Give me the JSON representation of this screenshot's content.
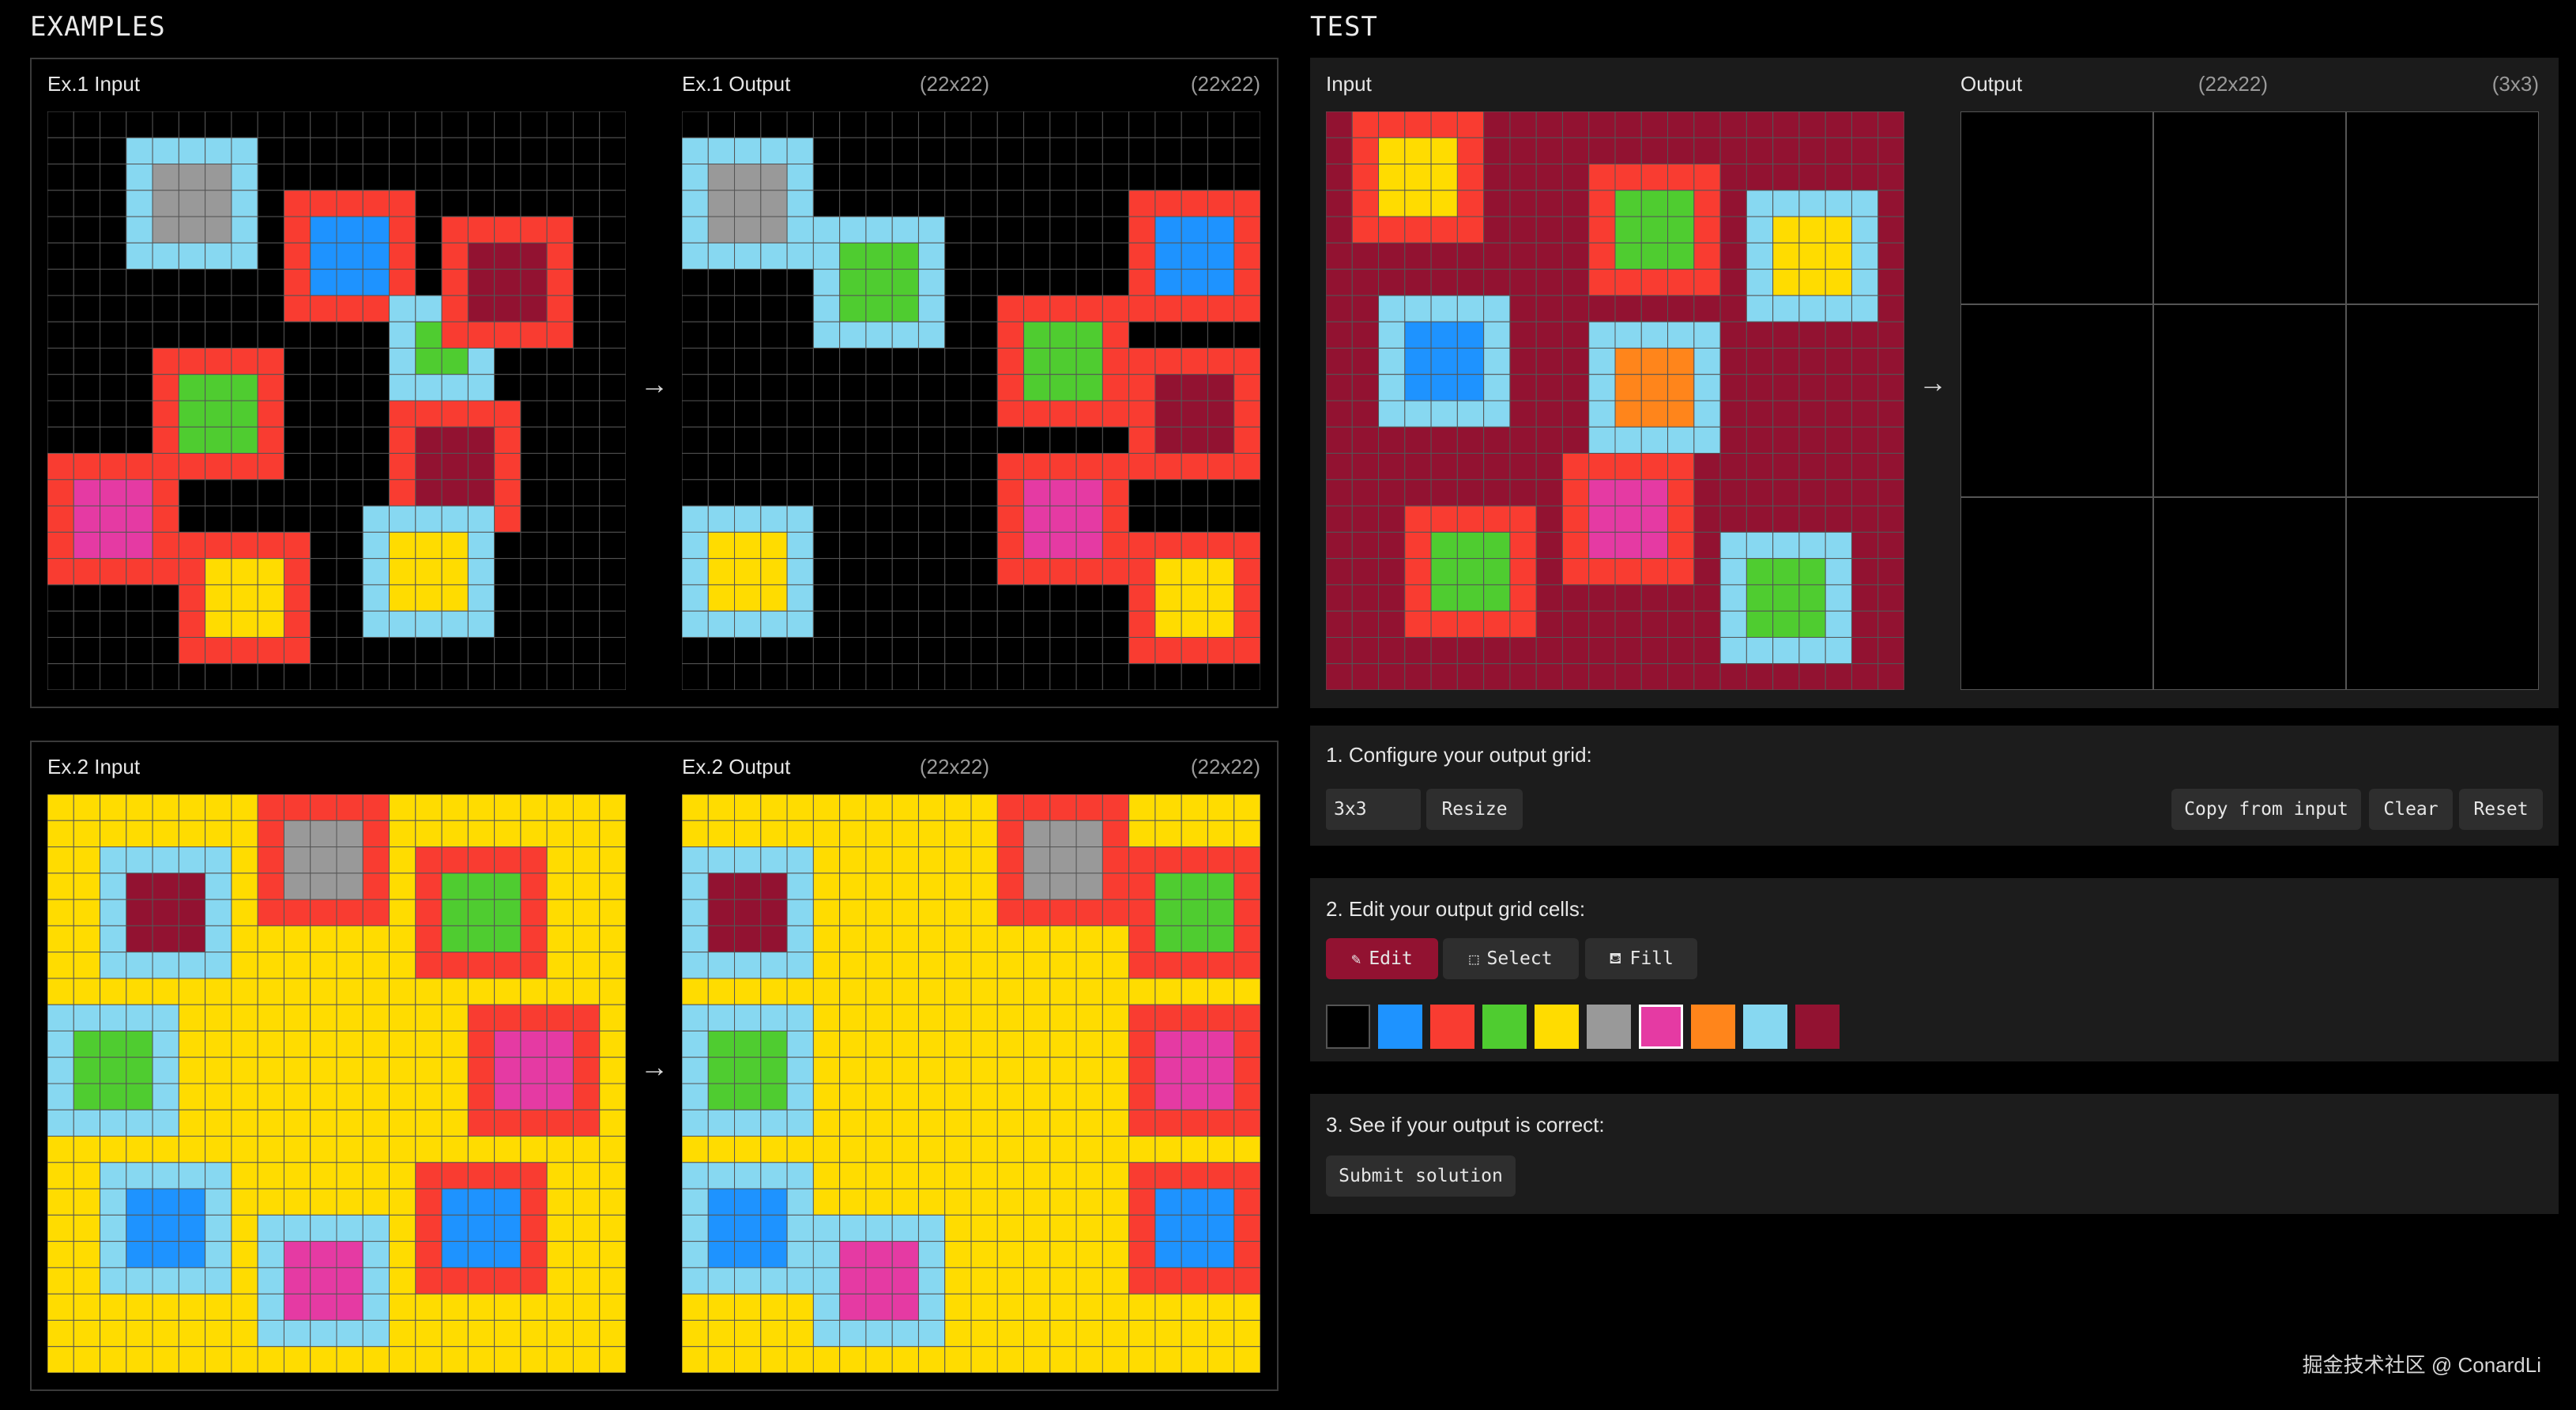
{
  "examples_title": "EXAMPLES",
  "test_title": "TEST",
  "palette": [
    "#000000",
    "#1E93FF",
    "#F93C31",
    "#4FCC30",
    "#FFDC00",
    "#999999",
    "#E53AA3",
    "#FF851B",
    "#87D8F1",
    "#921231"
  ],
  "grid_line_color": "#555555",
  "arrow": "→",
  "examples": [
    {
      "input": {
        "label": "Ex.1 Input",
        "size": "(22x22)",
        "bg": 0,
        "rects": [
          [
            1,
            3,
            5,
            5,
            8,
            5
          ],
          [
            3,
            9,
            5,
            5,
            2,
            1
          ],
          [
            7,
            13,
            4,
            4,
            8,
            3
          ],
          [
            4,
            15,
            5,
            5,
            2,
            9
          ],
          [
            9,
            4,
            5,
            5,
            2,
            3
          ],
          [
            11,
            13,
            5,
            5,
            2,
            9
          ],
          [
            13,
            0,
            5,
            5,
            2,
            6
          ],
          [
            15,
            12,
            5,
            5,
            8,
            4
          ],
          [
            16,
            5,
            5,
            5,
            2,
            4
          ]
        ]
      },
      "output": {
        "label": "Ex.1 Output",
        "size": "(22x22)",
        "bg": 0,
        "rects": [
          [
            1,
            0,
            5,
            5,
            8,
            5
          ],
          [
            3,
            17,
            5,
            5,
            2,
            1
          ],
          [
            4,
            5,
            5,
            5,
            8,
            3
          ],
          [
            7,
            12,
            5,
            5,
            2,
            3
          ],
          [
            9,
            17,
            5,
            5,
            2,
            9
          ],
          [
            13,
            12,
            5,
            5,
            2,
            6
          ],
          [
            15,
            0,
            5,
            5,
            8,
            4
          ],
          [
            16,
            17,
            5,
            5,
            2,
            4
          ]
        ]
      }
    },
    {
      "input": {
        "label": "Ex.2 Input",
        "size": "(22x22)",
        "bg": 4,
        "rects": [
          [
            0,
            8,
            5,
            5,
            2,
            5
          ],
          [
            2,
            2,
            5,
            5,
            8,
            9
          ],
          [
            2,
            14,
            5,
            5,
            2,
            3
          ],
          [
            8,
            0,
            5,
            5,
            8,
            3
          ],
          [
            8,
            16,
            5,
            5,
            2,
            6
          ],
          [
            14,
            2,
            5,
            5,
            8,
            1
          ],
          [
            14,
            14,
            5,
            5,
            2,
            1
          ],
          [
            16,
            8,
            5,
            5,
            8,
            6
          ]
        ]
      },
      "output": {
        "label": "Ex.2 Output",
        "size": "(22x22)",
        "bg": 4,
        "rects": [
          [
            0,
            12,
            5,
            5,
            2,
            5
          ],
          [
            2,
            0,
            5,
            5,
            8,
            9
          ],
          [
            2,
            17,
            5,
            5,
            2,
            3
          ],
          [
            8,
            0,
            5,
            5,
            8,
            3
          ],
          [
            8,
            17,
            5,
            5,
            2,
            6
          ],
          [
            14,
            0,
            5,
            5,
            8,
            1
          ],
          [
            14,
            17,
            5,
            5,
            2,
            1
          ],
          [
            16,
            5,
            5,
            5,
            8,
            6
          ]
        ]
      }
    }
  ],
  "test": {
    "input": {
      "label": "Input",
      "size": "(22x22)",
      "bg": 9,
      "rects": [
        [
          0,
          1,
          5,
          5,
          2,
          4
        ],
        [
          2,
          10,
          5,
          5,
          2,
          3
        ],
        [
          3,
          16,
          5,
          5,
          8,
          4
        ],
        [
          7,
          2,
          5,
          5,
          8,
          1
        ],
        [
          8,
          10,
          5,
          5,
          8,
          7
        ],
        [
          13,
          9,
          5,
          5,
          2,
          6
        ],
        [
          15,
          3,
          5,
          5,
          2,
          3
        ],
        [
          16,
          15,
          5,
          5,
          8,
          3
        ]
      ]
    },
    "output": {
      "label": "Output",
      "size": "(3x3)",
      "bg": 0,
      "rows": 3,
      "cols": 3
    }
  },
  "step1": {
    "title": "1. Configure your output grid:",
    "size_value": "3x3",
    "resize": "Resize",
    "copy": "Copy from input",
    "clear": "Clear",
    "reset": "Reset"
  },
  "step2": {
    "title": "2. Edit your output grid cells:",
    "edit": "Edit",
    "select": "Select",
    "fill": "Fill",
    "selected_color": 6
  },
  "step3": {
    "title": "3. See if your output is correct:",
    "submit": "Submit solution"
  },
  "watermark": "掘金技术社区 @ ConardLi"
}
